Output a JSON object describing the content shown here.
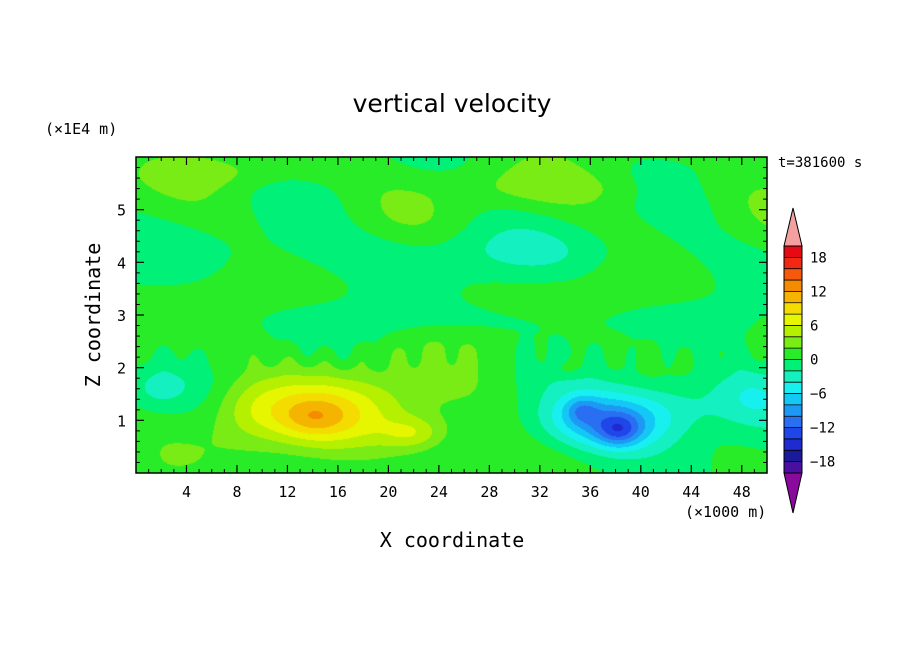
{
  "chart_data": {
    "type": "heatmap",
    "title": "vertical velocity",
    "xlabel": "X coordinate",
    "ylabel": "Z coordinate",
    "x_unit": "(×1000 m)",
    "y_unit": "(×1E4 m)",
    "time_label": "t=381600 s",
    "xlim": [
      0,
      50
    ],
    "ylim": [
      0,
      6
    ],
    "x_ticks": [
      "4",
      "8",
      "12",
      "16",
      "20",
      "24",
      "28",
      "32",
      "36",
      "40",
      "44",
      "48"
    ],
    "y_ticks": [
      "1",
      "2",
      "3",
      "4",
      "5"
    ],
    "colorbar": {
      "tick_labels": [
        "18",
        "12",
        "6",
        "0",
        "−6",
        "−12",
        "−18"
      ],
      "levels": [
        -20,
        -18,
        -16,
        -14,
        -12,
        -10,
        -8,
        -6,
        -4,
        -2,
        0,
        2,
        4,
        6,
        8,
        10,
        12,
        14,
        16,
        18,
        20
      ],
      "colors": [
        "#8b0a9e",
        "#4a0fa0",
        "#1a1a9a",
        "#1f2ad0",
        "#1e46e8",
        "#2a6ef2",
        "#1e98f5",
        "#14c8f5",
        "#18f0f0",
        "#14f0c0",
        "#00f078",
        "#28ec28",
        "#78ec14",
        "#b4f000",
        "#e6f500",
        "#f5dc00",
        "#f5b400",
        "#f58c00",
        "#f55a0a",
        "#f02814",
        "#e60a14",
        "#f5a0a0"
      ]
    },
    "features": [
      {
        "name": "updraft-core",
        "x": 14,
        "z": 1.1,
        "max_w": 9
      },
      {
        "name": "updraft-secondary",
        "x": 22,
        "z": 0.75,
        "max_w": 8
      },
      {
        "name": "downdraft-core",
        "x": 38,
        "z": 0.8,
        "max_w": -14
      },
      {
        "name": "downdraft-secondary",
        "x": 35,
        "z": 1.2,
        "max_w": -12
      },
      {
        "name": "upper-layer-band",
        "x": 25,
        "z": 4.2,
        "max_w": -1
      }
    ]
  }
}
